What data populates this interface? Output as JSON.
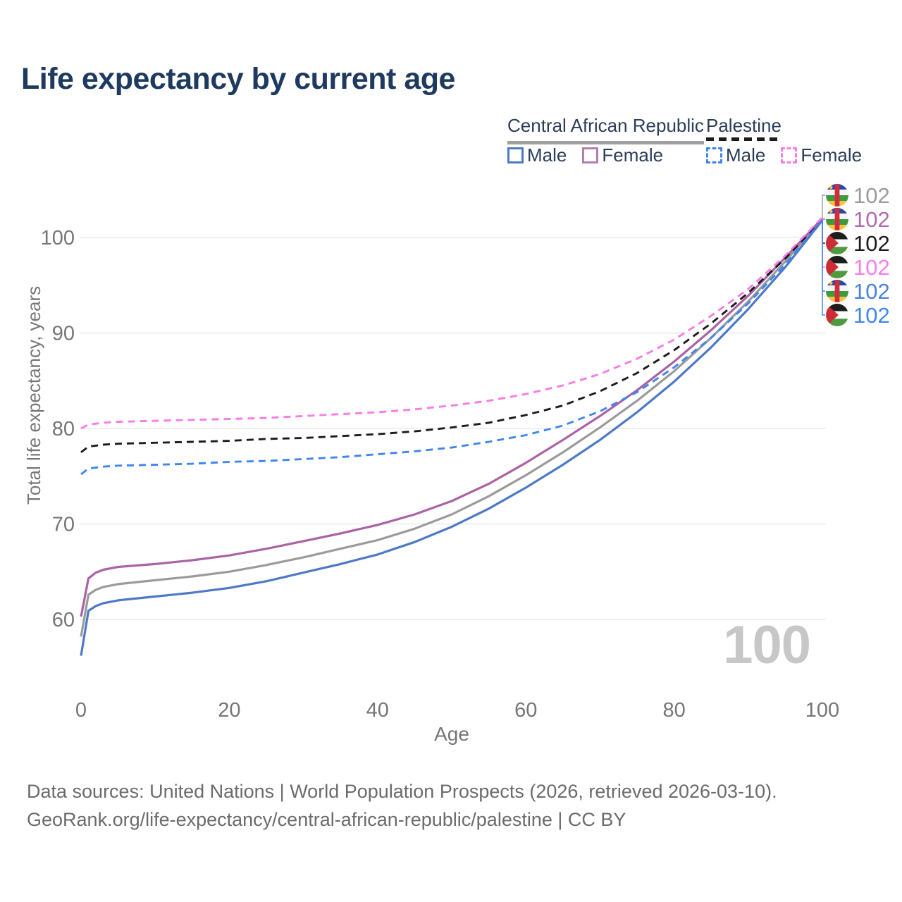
{
  "title": "Life expectancy by current age",
  "legend": {
    "groups": [
      {
        "label": "Central African Republic",
        "line_style": "solid",
        "line_color": "#a0a0a0",
        "items": [
          {
            "label": "Male",
            "color": "#4e79c7",
            "style": "solid"
          },
          {
            "label": "Female",
            "color": "#b27fb0",
            "style": "solid"
          }
        ]
      },
      {
        "label": "Palestine",
        "line_style": "dashed",
        "line_color": "#1c1c1c",
        "items": [
          {
            "label": "Male",
            "color": "#3f86f0",
            "style": "dashed"
          },
          {
            "label": "Female",
            "color": "#f97ce4",
            "style": "dashed"
          }
        ]
      }
    ]
  },
  "chart_data": {
    "type": "line",
    "title": "Life expectancy by current age",
    "xlabel": "Age",
    "ylabel": "Total life expectancy, years",
    "xticks": [
      0,
      20,
      40,
      60,
      80,
      100
    ],
    "yticks": [
      60,
      70,
      80,
      90,
      100
    ],
    "xlim": [
      0,
      100
    ],
    "ylim": [
      53,
      104
    ],
    "grid": "horizontal",
    "legend_position": "top-right",
    "hover_age_label": "100",
    "x": [
      0,
      1,
      2,
      3,
      5,
      10,
      15,
      20,
      25,
      30,
      35,
      40,
      45,
      50,
      55,
      60,
      65,
      70,
      75,
      80,
      85,
      90,
      95,
      100
    ],
    "series": [
      {
        "name": "Central African Republic — Total",
        "country": "Central African Republic",
        "sex": "Total",
        "color": "#9b9b9b",
        "label_color": "#9b9b9b",
        "dashed": false,
        "flag": "car",
        "end_label": "102",
        "values": [
          58.2,
          62.6,
          63.1,
          63.4,
          63.7,
          64.1,
          64.5,
          65.0,
          65.7,
          66.5,
          67.4,
          68.3,
          69.5,
          71.0,
          72.9,
          75.1,
          77.5,
          80.1,
          82.9,
          86.0,
          89.5,
          93.3,
          97.5,
          101.9
        ]
      },
      {
        "name": "Central African Republic — Female",
        "country": "Central African Republic",
        "sex": "Female",
        "color": "#aa63a5",
        "label_color": "#b06aae",
        "dashed": false,
        "flag": "car",
        "end_label": "102",
        "values": [
          60.3,
          64.3,
          64.9,
          65.2,
          65.5,
          65.8,
          66.2,
          66.7,
          67.4,
          68.2,
          69.0,
          69.9,
          71.0,
          72.4,
          74.2,
          76.4,
          78.8,
          81.3,
          84.0,
          87.0,
          90.3,
          93.9,
          97.9,
          102.0
        ]
      },
      {
        "name": "Palestine — Total",
        "country": "Palestine",
        "sex": "Total",
        "color": "#1c1c1c",
        "label_color": "#1c1c1c",
        "dashed": true,
        "flag": "ps",
        "end_label": "102",
        "values": [
          77.5,
          78.1,
          78.2,
          78.3,
          78.4,
          78.5,
          78.6,
          78.7,
          78.9,
          79.0,
          79.2,
          79.4,
          79.7,
          80.1,
          80.6,
          81.4,
          82.4,
          83.9,
          85.8,
          88.2,
          91.0,
          94.2,
          97.8,
          101.9
        ]
      },
      {
        "name": "Palestine — Female",
        "country": "Palestine",
        "sex": "Female",
        "color": "#f97ce4",
        "label_color": "#fb7ce8",
        "dashed": true,
        "flag": "ps",
        "end_label": "102",
        "values": [
          80.0,
          80.4,
          80.5,
          80.6,
          80.7,
          80.8,
          80.9,
          81.0,
          81.1,
          81.3,
          81.5,
          81.7,
          82.0,
          82.4,
          82.9,
          83.6,
          84.5,
          85.7,
          87.3,
          89.3,
          91.8,
          94.6,
          98.1,
          102.1
        ]
      },
      {
        "name": "Central African Republic — Male",
        "country": "Central African Republic",
        "sex": "Male",
        "color": "#4e79c7",
        "label_color": "#4b80dd",
        "dashed": false,
        "flag": "car",
        "end_label": "102",
        "values": [
          56.2,
          60.9,
          61.4,
          61.7,
          62.0,
          62.4,
          62.8,
          63.3,
          64.0,
          64.9,
          65.8,
          66.8,
          68.1,
          69.7,
          71.6,
          73.8,
          76.2,
          78.8,
          81.7,
          84.9,
          88.5,
          92.5,
          96.9,
          101.8
        ]
      },
      {
        "name": "Palestine — Male",
        "country": "Palestine",
        "sex": "Male",
        "color": "#3f86f0",
        "label_color": "#3f86f0",
        "dashed": true,
        "flag": "ps",
        "end_label": "102",
        "values": [
          75.2,
          75.8,
          75.9,
          76.0,
          76.1,
          76.2,
          76.3,
          76.5,
          76.6,
          76.8,
          77.0,
          77.3,
          77.6,
          78.0,
          78.6,
          79.3,
          80.3,
          81.8,
          83.8,
          86.4,
          89.5,
          93.1,
          97.2,
          101.8
        ]
      }
    ]
  },
  "footer": {
    "line1": "Data sources: United Nations | World Population Prospects (2026, retrieved 2026-03-10).",
    "line2": "GeoRank.org/life-expectancy/central-african-republic/palestine | CC BY"
  }
}
